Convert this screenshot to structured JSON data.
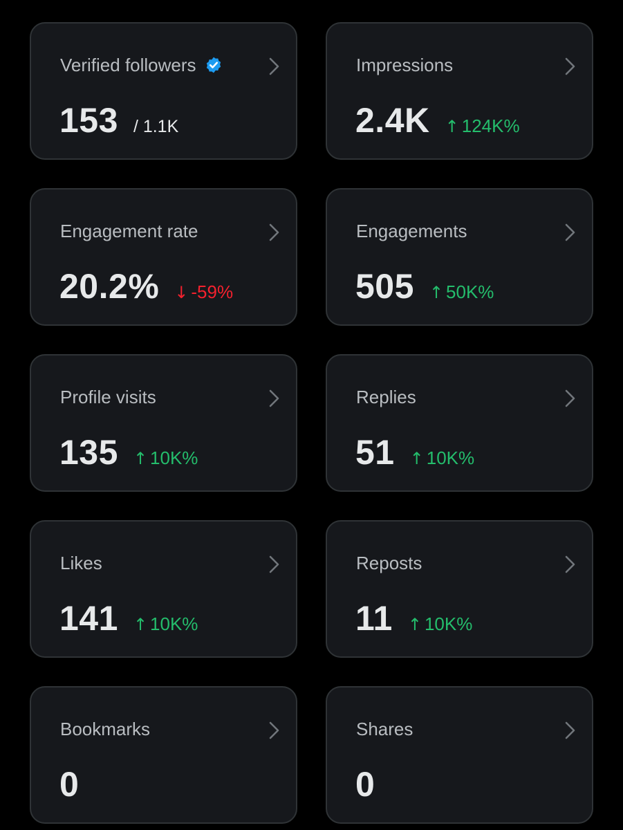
{
  "colors": {
    "background": "#000000",
    "card": "#16181c",
    "card_border": "#2f3336",
    "label": "#b9bdc1",
    "value": "#e7e9ea",
    "positive": "#24bd6c",
    "negative": "#f4212e",
    "verified": "#1d9bf0"
  },
  "cards": [
    {
      "label": "Verified followers",
      "value": "153",
      "suffix": "/ 1.1K",
      "change": "",
      "direction": "",
      "arrow": "",
      "icon": "verified-badge-icon"
    },
    {
      "label": "Impressions",
      "value": "2.4K",
      "suffix": "",
      "change": "124K%",
      "direction": "up",
      "arrow": "↑"
    },
    {
      "label": "Engagement rate",
      "value": "20.2%",
      "suffix": "",
      "change": "-59%",
      "direction": "down",
      "arrow": "↓"
    },
    {
      "label": "Engagements",
      "value": "505",
      "suffix": "",
      "change": "50K%",
      "direction": "up",
      "arrow": "↑"
    },
    {
      "label": "Profile visits",
      "value": "135",
      "suffix": "",
      "change": "10K%",
      "direction": "up",
      "arrow": "↑"
    },
    {
      "label": "Replies",
      "value": "51",
      "suffix": "",
      "change": "10K%",
      "direction": "up",
      "arrow": "↑"
    },
    {
      "label": "Likes",
      "value": "141",
      "suffix": "",
      "change": "10K%",
      "direction": "up",
      "arrow": "↑"
    },
    {
      "label": "Reposts",
      "value": "11",
      "suffix": "",
      "change": "10K%",
      "direction": "up",
      "arrow": "↑"
    },
    {
      "label": "Bookmarks",
      "value": "0",
      "suffix": "",
      "change": "",
      "direction": "",
      "arrow": ""
    },
    {
      "label": "Shares",
      "value": "0",
      "suffix": "",
      "change": "",
      "direction": "",
      "arrow": ""
    }
  ]
}
